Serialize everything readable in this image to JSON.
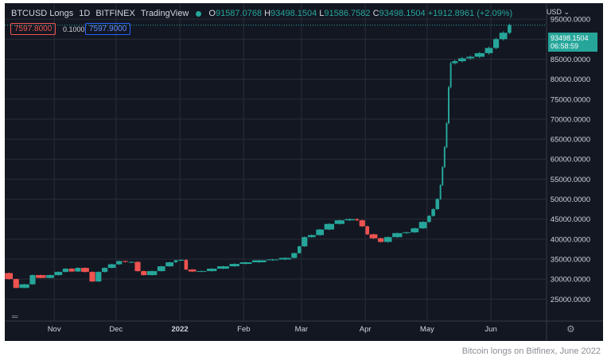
{
  "legend": {
    "symbol": "BTCUSD Longs",
    "interval": "1D",
    "exchange": "BITFINEX",
    "source": "TradingView",
    "o_label": "O",
    "o_value": "91587.0768",
    "h_label": "H",
    "h_value": "93498.1504",
    "l_label": "L",
    "l_value": "91586.7582",
    "c_label": "C",
    "c_value": "93498.1504",
    "change": "+1912.8961 (+2.09%)"
  },
  "bid_price": "7597.8000",
  "spread": "0.1000",
  "ask_price": "7597.9000",
  "currency_menu": "USD",
  "last_price_label": "93498.1504",
  "countdown_label": "06:58:59",
  "caption": "Bitcoin longs on Bitfinex, June 2022",
  "colors": {
    "up": "#26a69a",
    "down": "#ef5350",
    "background": "#131722",
    "grid": "#2a2e39",
    "text": "#d1d4dc"
  },
  "icons": {
    "gear": "settings-gear-icon"
  },
  "chart_data": {
    "type": "candlestick",
    "title": "BTCUSD Longs",
    "x_ticks": [
      {
        "date": "2021-11-01",
        "label": "Nov"
      },
      {
        "date": "2021-12-01",
        "label": "Dec"
      },
      {
        "date": "2022-01-01",
        "label": "2022"
      },
      {
        "date": "2022-02-01",
        "label": "Feb"
      },
      {
        "date": "2022-03-01",
        "label": "Mar"
      },
      {
        "date": "2022-04-01",
        "label": "Apr"
      },
      {
        "date": "2022-05-01",
        "label": "May"
      },
      {
        "date": "2022-06-01",
        "label": "Jun"
      }
    ],
    "y_ticks": [
      "95000.0000",
      "90000.0000",
      "85000.0000",
      "80000.0000",
      "75000.0000",
      "70000.0000",
      "65000.0000",
      "60000.0000",
      "55000.0000",
      "50000.0000",
      "45000.0000",
      "40000.0000",
      "35000.0000",
      "30000.0000",
      "25000.0000"
    ],
    "xlim": [
      "2021-10-08",
      "2022-06-28"
    ],
    "ylim": [
      19500,
      99000
    ],
    "grid": true,
    "last_close": 93498.1504,
    "series": [
      {
        "date": "2021-10-08",
        "close": 31500
      },
      {
        "date": "2021-10-12",
        "close": 30000
      },
      {
        "date": "2021-10-15",
        "close": 27800
      },
      {
        "date": "2021-10-20",
        "close": 28700
      },
      {
        "date": "2021-10-23",
        "close": 31000
      },
      {
        "date": "2021-10-28",
        "close": 30300
      },
      {
        "date": "2021-11-01",
        "close": 31000
      },
      {
        "date": "2021-11-05",
        "close": 31800
      },
      {
        "date": "2021-11-08",
        "close": 32600
      },
      {
        "date": "2021-11-11",
        "close": 31900
      },
      {
        "date": "2021-11-14",
        "close": 32800
      },
      {
        "date": "2021-11-18",
        "close": 31800
      },
      {
        "date": "2021-11-21",
        "close": 29400
      },
      {
        "date": "2021-11-24",
        "close": 31800
      },
      {
        "date": "2021-11-27",
        "close": 32800
      },
      {
        "date": "2021-12-01",
        "close": 33700
      },
      {
        "date": "2021-12-04",
        "close": 34500
      },
      {
        "date": "2021-12-07",
        "close": 34300
      },
      {
        "date": "2021-12-10",
        "close": 34300
      },
      {
        "date": "2021-12-13",
        "close": 32000
      },
      {
        "date": "2021-12-16",
        "close": 31000
      },
      {
        "date": "2021-12-21",
        "close": 32000
      },
      {
        "date": "2021-12-25",
        "close": 33200
      },
      {
        "date": "2021-12-29",
        "close": 34200
      },
      {
        "date": "2021-12-31",
        "close": 34700
      },
      {
        "date": "2022-01-03",
        "close": 34800
      },
      {
        "date": "2022-01-05",
        "close": 32400
      },
      {
        "date": "2022-01-09",
        "close": 31900
      },
      {
        "date": "2022-01-14",
        "close": 32000
      },
      {
        "date": "2022-01-19",
        "close": 32600
      },
      {
        "date": "2022-01-25",
        "close": 33200
      },
      {
        "date": "2022-01-30",
        "close": 33800
      },
      {
        "date": "2022-02-05",
        "close": 34200
      },
      {
        "date": "2022-02-12",
        "close": 34700
      },
      {
        "date": "2022-02-18",
        "close": 34900
      },
      {
        "date": "2022-02-24",
        "close": 35300
      },
      {
        "date": "2022-02-27",
        "close": 36500
      },
      {
        "date": "2022-03-01",
        "close": 38200
      },
      {
        "date": "2022-03-04",
        "close": 40500
      },
      {
        "date": "2022-03-08",
        "close": 41000
      },
      {
        "date": "2022-03-12",
        "close": 42400
      },
      {
        "date": "2022-03-17",
        "close": 43800
      },
      {
        "date": "2022-03-22",
        "close": 44700
      },
      {
        "date": "2022-03-27",
        "close": 45000
      },
      {
        "date": "2022-03-29",
        "close": 44700
      },
      {
        "date": "2022-04-01",
        "close": 43200
      },
      {
        "date": "2022-04-03",
        "close": 41200
      },
      {
        "date": "2022-04-07",
        "close": 40200
      },
      {
        "date": "2022-04-10",
        "close": 39300
      },
      {
        "date": "2022-04-14",
        "close": 40500
      },
      {
        "date": "2022-04-19",
        "close": 41500
      },
      {
        "date": "2022-04-23",
        "close": 41700
      },
      {
        "date": "2022-04-27",
        "close": 42700
      },
      {
        "date": "2022-05-01",
        "close": 44300
      },
      {
        "date": "2022-05-03",
        "close": 45800
      },
      {
        "date": "2022-05-05",
        "close": 47500
      },
      {
        "date": "2022-05-07",
        "close": 50000
      },
      {
        "date": "2022-05-08",
        "close": 53500
      },
      {
        "date": "2022-05-09",
        "close": 58000
      },
      {
        "date": "2022-05-10",
        "close": 63000
      },
      {
        "date": "2022-05-11",
        "close": 69000
      },
      {
        "date": "2022-05-12",
        "close": 78000
      },
      {
        "date": "2022-05-13",
        "close": 84000
      },
      {
        "date": "2022-05-16",
        "close": 84500
      },
      {
        "date": "2022-05-20",
        "close": 85200
      },
      {
        "date": "2022-05-24",
        "close": 85600
      },
      {
        "date": "2022-05-29",
        "close": 86500
      },
      {
        "date": "2022-06-02",
        "close": 87800
      },
      {
        "date": "2022-06-05",
        "close": 90000
      },
      {
        "date": "2022-06-09",
        "close": 91600
      },
      {
        "date": "2022-06-11",
        "close": 93500
      }
    ]
  }
}
